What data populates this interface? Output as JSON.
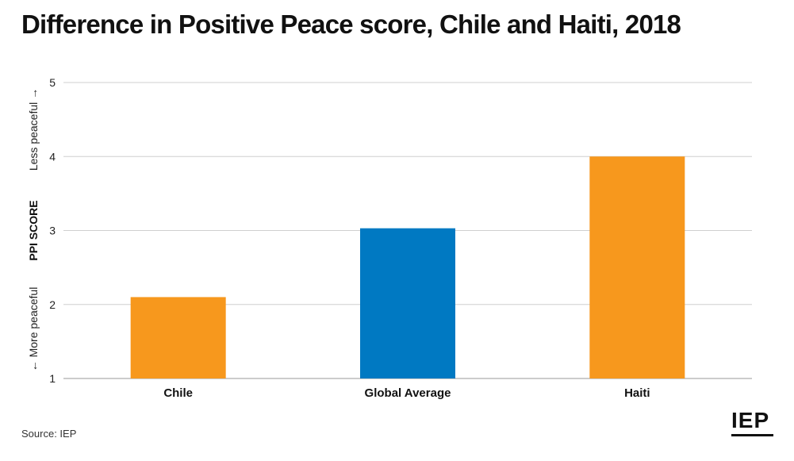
{
  "title": "Difference in Positive Peace score, Chile and Haiti, 2018",
  "source": "Source: IEP",
  "logo": "IEP",
  "chart_data": {
    "type": "bar",
    "title": "Difference in Positive Peace score, Chile and Haiti, 2018",
    "categories": [
      "Chile",
      "Global Average",
      "Haiti"
    ],
    "values": [
      2.1,
      3.03,
      4.0
    ],
    "colors": [
      "#F7981D",
      "#0079C2",
      "#F7981D"
    ],
    "ylabel": "PPI SCORE",
    "ylabel_top": "Less peaceful",
    "ylabel_bottom": "More peaceful",
    "ylim": [
      1,
      5
    ],
    "yticks": [
      1,
      2,
      3,
      4,
      5
    ],
    "grid": true
  }
}
